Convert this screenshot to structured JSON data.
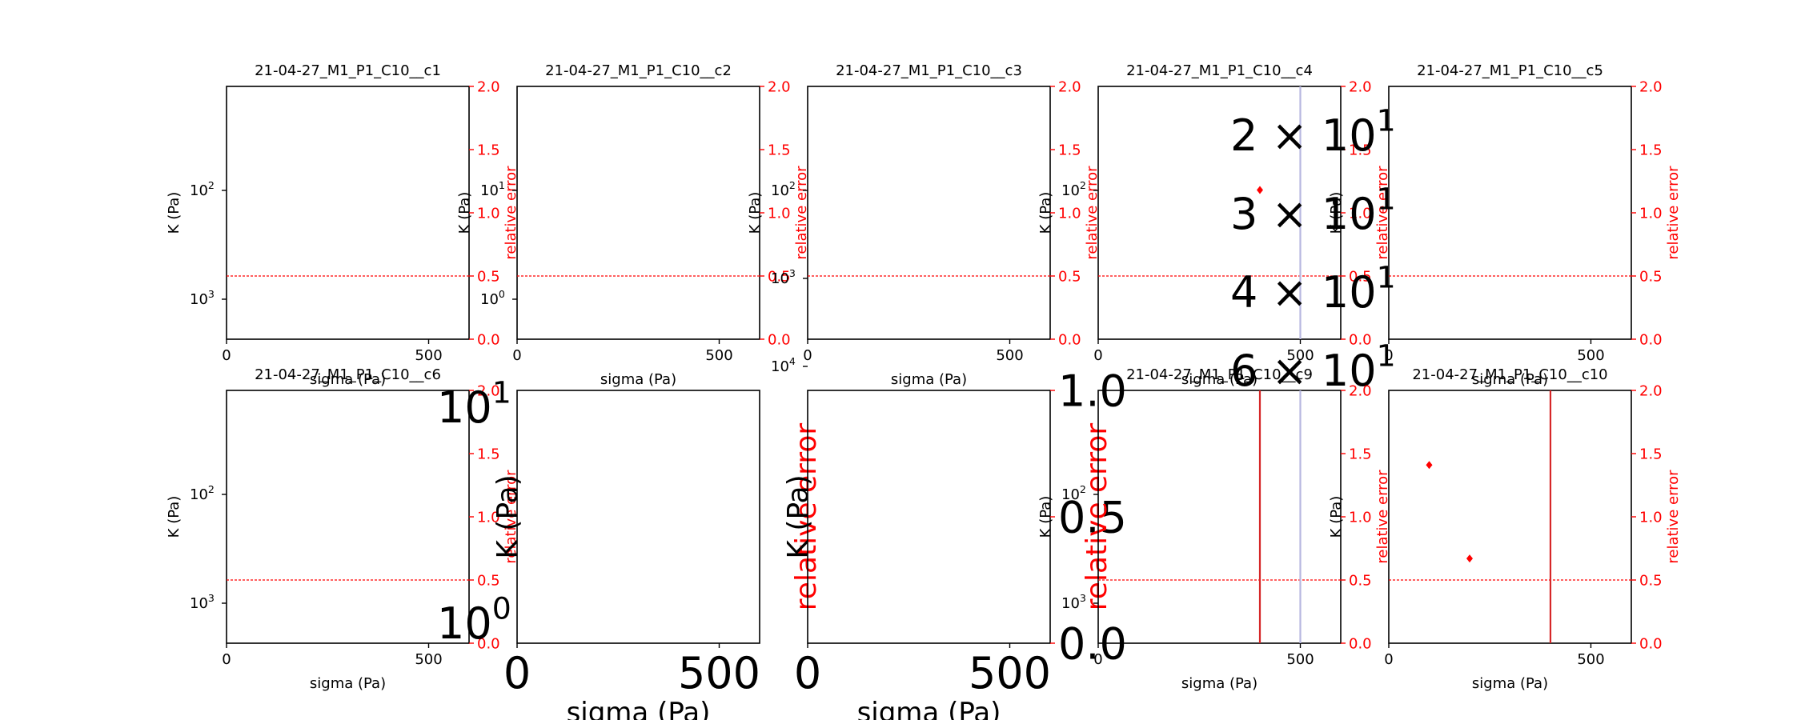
{
  "chart_data": [
    {
      "type": "scatter",
      "title": "21-04-27_M1_P1_C10__c1",
      "xlabel": "sigma (Pa)",
      "ylabel": "K (Pa)",
      "y2label": "relative error",
      "xlim": [
        0,
        600
      ],
      "y2lim": [
        0,
        2
      ],
      "threshold": 0.5,
      "xticks": [
        "0",
        "500"
      ],
      "xtick_values": [
        0,
        500
      ],
      "y2ticks": [
        "0.0",
        "0.5",
        "1.0",
        "1.5",
        "2.0"
      ],
      "yticks": [
        {
          "base": "10",
          "exp": "2"
        },
        {
          "base": "10",
          "exp": "3"
        }
      ],
      "series": [
        {
          "name": "relative error",
          "points": []
        }
      ],
      "vlines": []
    },
    {
      "type": "scatter",
      "title": "21-04-27_M1_P1_C10__c2",
      "xlabel": "sigma (Pa)",
      "ylabel": "K (Pa)",
      "y2label": "relative error",
      "xlim": [
        0,
        600
      ],
      "y2lim": [
        0,
        2
      ],
      "threshold": 0.5,
      "xticks": [
        "0",
        "500"
      ],
      "xtick_values": [
        0,
        500
      ],
      "y2ticks": [
        "0.0",
        "0.5",
        "1.0",
        "1.5",
        "2.0"
      ],
      "yticks": [
        {
          "base": "10",
          "exp": "1"
        },
        {
          "base": "10",
          "exp": "0"
        }
      ],
      "series": [
        {
          "name": "relative error",
          "points": []
        }
      ],
      "vlines": []
    },
    {
      "type": "scatter",
      "title": "21-04-27_M1_P1_C10__c3",
      "xlabel": "sigma (Pa)",
      "ylabel": "K (Pa)",
      "y2label": "relative error",
      "xlim": [
        0,
        600
      ],
      "y2lim": [
        0,
        2
      ],
      "threshold": 0.5,
      "xticks": [
        "0",
        "500"
      ],
      "xtick_values": [
        0,
        500
      ],
      "y2ticks": [
        "0.0",
        "0.5",
        "1.0",
        "1.5",
        "2.0"
      ],
      "yticks": [
        {
          "base": "10",
          "exp": "2"
        },
        {
          "base": "10",
          "exp": "3"
        },
        {
          "base": "10",
          "exp": "4"
        }
      ],
      "series": [
        {
          "name": "relative error",
          "points": []
        }
      ],
      "vlines": []
    },
    {
      "type": "scatter",
      "title": "21-04-27_M1_P1_C10__c4",
      "xlabel": "sigma (Pa)",
      "ylabel": "K (Pa)",
      "y2label": "relative error",
      "xlim": [
        0,
        600
      ],
      "y2lim": [
        0,
        2
      ],
      "threshold": 0.5,
      "xticks": [
        "0",
        "500"
      ],
      "xtick_values": [
        0,
        500
      ],
      "y2ticks": [
        "0.0",
        "0.5",
        "1.0",
        "1.5",
        "2.0"
      ],
      "yticks": [
        {
          "base": "10",
          "exp": "2"
        }
      ],
      "big_labels": [
        {
          "mant": "2 × 10",
          "exp": "1"
        },
        {
          "mant": "3 × 10",
          "exp": "1"
        },
        {
          "mant": "4 × 10",
          "exp": "1"
        },
        {
          "mant": "6 × 10",
          "exp": "1"
        }
      ],
      "series": [
        {
          "name": "relative error",
          "points": [
            [
              400,
              1.18
            ]
          ]
        }
      ],
      "vlines": [
        {
          "x": 500,
          "color": "#b8b8e0"
        }
      ]
    },
    {
      "type": "scatter",
      "title": "21-04-27_M1_P1_C10__c5",
      "xlabel": "sigma (Pa)",
      "ylabel": "K (Pa)",
      "y2label": "relative error",
      "xlim": [
        0,
        600
      ],
      "y2lim": [
        0,
        2
      ],
      "threshold": 0.5,
      "xticks": [
        "0",
        "500"
      ],
      "xtick_values": [
        0,
        500
      ],
      "y2ticks": [
        "0.0",
        "0.5",
        "1.0",
        "1.5",
        "2.0"
      ],
      "yticks": [],
      "series": [
        {
          "name": "relative error",
          "points": []
        }
      ],
      "vlines": []
    },
    {
      "type": "scatter",
      "title": "21-04-27_M1_P1_C10__c6",
      "xlabel": "sigma (Pa)",
      "ylabel": "K (Pa)",
      "y2label": "relative error",
      "xlim": [
        0,
        600
      ],
      "y2lim": [
        0,
        2
      ],
      "threshold": 0.5,
      "xticks": [
        "0",
        "500"
      ],
      "xtick_values": [
        0,
        500
      ],
      "y2ticks": [
        "0.0",
        "0.5",
        "1.0",
        "1.5",
        "2.0"
      ],
      "yticks": [
        {
          "base": "10",
          "exp": "2"
        },
        {
          "base": "10",
          "exp": "3"
        }
      ],
      "series": [
        {
          "name": "relative error",
          "points": []
        }
      ],
      "vlines": []
    },
    {
      "type": "scatter",
      "title": "",
      "xlabel": "sigma (Pa)",
      "ylabel": "K (Pa)",
      "y2label": "relative error",
      "xlim": [
        0,
        600
      ],
      "y2lim": [
        0,
        2
      ],
      "threshold": null,
      "xticks": [
        "0",
        "500"
      ],
      "xtick_values": [
        0,
        500
      ],
      "y2ticks": [],
      "yticks": [
        {
          "base": "10",
          "exp": "1"
        },
        {
          "base": "10",
          "exp": "0"
        }
      ],
      "series": [
        {
          "name": "relative error",
          "points": []
        }
      ],
      "vlines": []
    },
    {
      "type": "scatter",
      "title": "",
      "xlabel": "sigma (Pa)",
      "ylabel": "K (Pa)",
      "y2label": "relative error",
      "xlim": [
        0,
        600
      ],
      "y2lim": [
        0,
        1
      ],
      "threshold": null,
      "xticks": [
        "0",
        "500"
      ],
      "xtick_values": [
        0,
        500
      ],
      "y2ticks": [
        "0.0",
        "0.5",
        "1.0"
      ],
      "yticks": [],
      "series": [
        {
          "name": "relative error",
          "points": []
        }
      ],
      "vlines": []
    },
    {
      "type": "scatter",
      "title": "21-04-27_M1_P1_C10__c9",
      "xlabel": "sigma (Pa)",
      "ylabel": "K (Pa)",
      "y2label": "relative error",
      "xlim": [
        0,
        600
      ],
      "y2lim": [
        0,
        2
      ],
      "threshold": 0.5,
      "xticks": [
        "0",
        "500"
      ],
      "xtick_values": [
        0,
        500
      ],
      "y2ticks": [
        "0.0",
        "0.5",
        "1.0",
        "1.5",
        "2.0"
      ],
      "yticks": [
        {
          "base": "10",
          "exp": "2"
        },
        {
          "base": "10",
          "exp": "3"
        }
      ],
      "series": [
        {
          "name": "relative error",
          "points": []
        }
      ],
      "vlines": [
        {
          "x": 400,
          "color": "#d62728"
        },
        {
          "x": 500,
          "color": "#b8b8e0"
        }
      ]
    },
    {
      "type": "scatter",
      "title": "21-04-27_M1_P1_C10__c10",
      "xlabel": "sigma (Pa)",
      "ylabel": "K (Pa)",
      "y2label": "relative error",
      "xlim": [
        0,
        600
      ],
      "y2lim": [
        0,
        2
      ],
      "threshold": 0.5,
      "xticks": [
        "0",
        "500"
      ],
      "xtick_values": [
        0,
        500
      ],
      "y2ticks": [
        "0.0",
        "0.5",
        "1.0",
        "1.5",
        "2.0"
      ],
      "yticks": [],
      "series": [
        {
          "name": "relative error",
          "points": [
            [
              100,
              1.41
            ],
            [
              200,
              0.67
            ]
          ]
        }
      ],
      "vlines": [
        {
          "x": 400,
          "color": "#d62728"
        }
      ]
    }
  ],
  "colors": {
    "axis": "#000000",
    "error": "#ff0000",
    "threshold": "#ff0000"
  }
}
